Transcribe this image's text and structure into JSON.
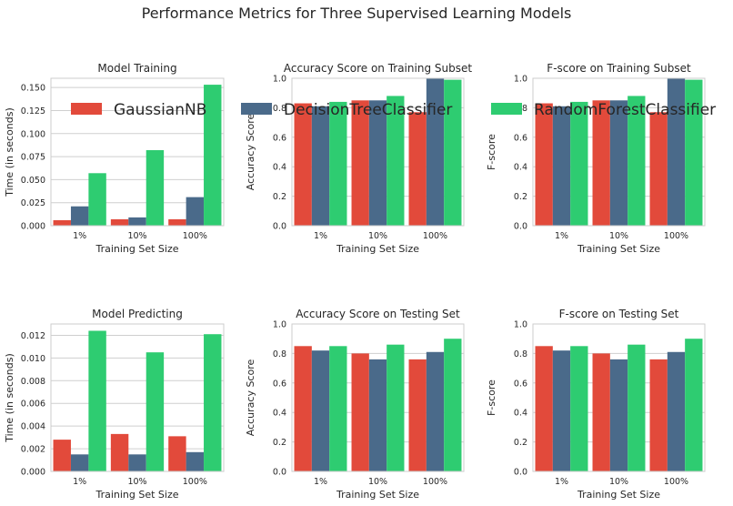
{
  "figure": {
    "title": "Performance Metrics for Three Supervised Learning Models"
  },
  "legend": {
    "placement": "upper-center",
    "entries": [
      {
        "name": "GaussianNB",
        "color": "#e24a3b"
      },
      {
        "name": "DecisionTreeClassifier",
        "color": "#4a6a8a"
      },
      {
        "name": "RandomForestClassifier",
        "color": "#2ecc71"
      }
    ]
  },
  "chart_data": [
    {
      "type": "bar",
      "title": "Model Training",
      "xlabel": "Training Set Size",
      "ylabel": "Time (in seconds)",
      "categories": [
        "1%",
        "10%",
        "100%"
      ],
      "ylim": [
        0,
        0.16
      ],
      "yticks": [
        "0.000",
        "0.025",
        "0.050",
        "0.075",
        "0.100",
        "0.125",
        "0.150"
      ],
      "ytick_values": [
        0,
        0.025,
        0.05,
        0.075,
        0.1,
        0.125,
        0.15
      ],
      "grid": true,
      "series": [
        {
          "name": "GaussianNB",
          "values": [
            0.006,
            0.007,
            0.007
          ]
        },
        {
          "name": "DecisionTreeClassifier",
          "values": [
            0.021,
            0.009,
            0.031
          ]
        },
        {
          "name": "RandomForestClassifier",
          "values": [
            0.057,
            0.082,
            0.153
          ]
        }
      ]
    },
    {
      "type": "bar",
      "title": "Accuracy Score on Training Subset",
      "xlabel": "Training Set Size",
      "ylabel": "Accuracy Score",
      "categories": [
        "1%",
        "10%",
        "100%"
      ],
      "ylim": [
        0,
        1
      ],
      "yticks": [
        "0.0",
        "0.2",
        "0.4",
        "0.6",
        "0.8",
        "1.0"
      ],
      "ytick_values": [
        0,
        0.2,
        0.4,
        0.6,
        0.8,
        1.0
      ],
      "grid": true,
      "series": [
        {
          "name": "GaussianNB",
          "values": [
            0.83,
            0.85,
            0.77
          ]
        },
        {
          "name": "DecisionTreeClassifier",
          "values": [
            0.81,
            0.85,
            1.0
          ]
        },
        {
          "name": "RandomForestClassifier",
          "values": [
            0.84,
            0.88,
            0.99
          ]
        }
      ]
    },
    {
      "type": "bar",
      "title": "F-score on Training Subset",
      "xlabel": "Training Set Size",
      "ylabel": "F-score",
      "categories": [
        "1%",
        "10%",
        "100%"
      ],
      "ylim": [
        0,
        1
      ],
      "yticks": [
        "0.0",
        "0.2",
        "0.4",
        "0.6",
        "0.8",
        "1.0"
      ],
      "ytick_values": [
        0,
        0.2,
        0.4,
        0.6,
        0.8,
        1.0
      ],
      "grid": true,
      "series": [
        {
          "name": "GaussianNB",
          "values": [
            0.83,
            0.85,
            0.77
          ]
        },
        {
          "name": "DecisionTreeClassifier",
          "values": [
            0.81,
            0.85,
            1.0
          ]
        },
        {
          "name": "RandomForestClassifier",
          "values": [
            0.84,
            0.88,
            0.99
          ]
        }
      ]
    },
    {
      "type": "bar",
      "title": "Model Predicting",
      "xlabel": "Training Set Size",
      "ylabel": "Time (in seconds)",
      "categories": [
        "1%",
        "10%",
        "100%"
      ],
      "ylim": [
        0,
        0.013
      ],
      "yticks": [
        "0.000",
        "0.002",
        "0.004",
        "0.006",
        "0.008",
        "0.010",
        "0.012"
      ],
      "ytick_values": [
        0,
        0.002,
        0.004,
        0.006,
        0.008,
        0.01,
        0.012
      ],
      "grid": true,
      "series": [
        {
          "name": "GaussianNB",
          "values": [
            0.0028,
            0.0033,
            0.0031
          ]
        },
        {
          "name": "DecisionTreeClassifier",
          "values": [
            0.0015,
            0.0015,
            0.0017
          ]
        },
        {
          "name": "RandomForestClassifier",
          "values": [
            0.0124,
            0.0105,
            0.0121
          ]
        }
      ]
    },
    {
      "type": "bar",
      "title": "Accuracy Score on Testing Set",
      "xlabel": "Training Set Size",
      "ylabel": "Accuracy Score",
      "categories": [
        "1%",
        "10%",
        "100%"
      ],
      "ylim": [
        0,
        1
      ],
      "yticks": [
        "0.0",
        "0.2",
        "0.4",
        "0.6",
        "0.8",
        "1.0"
      ],
      "ytick_values": [
        0,
        0.2,
        0.4,
        0.6,
        0.8,
        1.0
      ],
      "grid": true,
      "series": [
        {
          "name": "GaussianNB",
          "values": [
            0.85,
            0.8,
            0.76
          ]
        },
        {
          "name": "DecisionTreeClassifier",
          "values": [
            0.82,
            0.76,
            0.81
          ]
        },
        {
          "name": "RandomForestClassifier",
          "values": [
            0.85,
            0.86,
            0.9
          ]
        }
      ]
    },
    {
      "type": "bar",
      "title": "F-score on Testing Set",
      "xlabel": "Training Set Size",
      "ylabel": "F-score",
      "categories": [
        "1%",
        "10%",
        "100%"
      ],
      "ylim": [
        0,
        1
      ],
      "yticks": [
        "0.0",
        "0.2",
        "0.4",
        "0.6",
        "0.8",
        "1.0"
      ],
      "ytick_values": [
        0,
        0.2,
        0.4,
        0.6,
        0.8,
        1.0
      ],
      "grid": true,
      "series": [
        {
          "name": "GaussianNB",
          "values": [
            0.85,
            0.8,
            0.76
          ]
        },
        {
          "name": "DecisionTreeClassifier",
          "values": [
            0.82,
            0.76,
            0.81
          ]
        },
        {
          "name": "RandomForestClassifier",
          "values": [
            0.85,
            0.86,
            0.9
          ]
        }
      ]
    }
  ]
}
